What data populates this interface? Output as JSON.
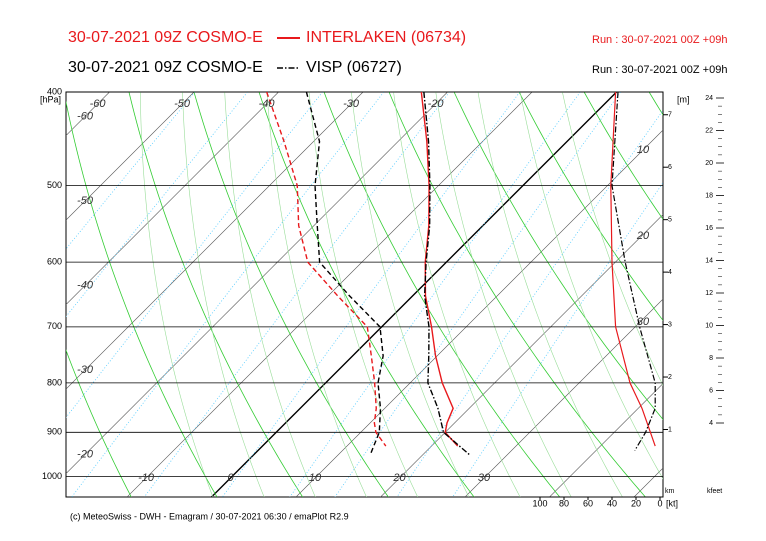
{
  "chart_data": {
    "type": "emagram",
    "footer": "(c) MeteoSwiss - DWH - Emagram / 30-07-2021 06:30 / emaPlot R2.9",
    "pressure_unit": "[hPa]",
    "height_unit": "[m]",
    "height_unit_bottom": "km",
    "kfeet_label": "kfeet",
    "speed_unit": "[kt]",
    "log_y": true,
    "ylim": [
      400,
      1050
    ],
    "yticks": [
      400,
      500,
      600,
      700,
      800,
      900,
      1000
    ],
    "temp_labels_top": [
      -60,
      -50,
      -40,
      -30,
      -20
    ],
    "temp_labels_left": [
      -60,
      -50,
      -40,
      -30,
      -20
    ],
    "temp_labels_bottom": [
      -10,
      0,
      10,
      20,
      30
    ],
    "height_ticks": [
      1,
      2,
      3,
      4,
      5,
      6,
      7
    ],
    "kfeet_lim": [
      4,
      24
    ],
    "kfeet_ticks": [
      4,
      6,
      8,
      10,
      12,
      14,
      16,
      18,
      20,
      22,
      24
    ],
    "speed_lim": [
      100,
      0
    ],
    "speed_ticks": [
      100,
      80,
      60,
      40,
      20,
      0
    ],
    "speed_annotations": [
      10,
      20,
      30
    ],
    "series": [
      {
        "model": "30-07-2021 09Z COSMO-E",
        "name": "INTERLAKEN (06734)",
        "run": "Run : 30-07-2021 00Z +09h",
        "color": "#e8191c",
        "temperature_style": "solid",
        "dewpoint_style": "dashed",
        "pressure": [
          400,
          450,
          500,
          550,
          600,
          650,
          700,
          750,
          800,
          850,
          880,
          900,
          930
        ],
        "temperature": [
          -23.1,
          -16.6,
          -11.1,
          -6.4,
          -2.5,
          1.5,
          5.9,
          9.8,
          13.8,
          18.1,
          19.1,
          20.0,
          23.1
        ],
        "dewpoint": [
          -41.4,
          -33.5,
          -26.7,
          -21.8,
          -16.4,
          -8.9,
          -1.7,
          2.2,
          5.8,
          9.0,
          10.5,
          11.8,
          14.6
        ],
        "wind_pressure": [
          400,
          500,
          600,
          700,
          800,
          850,
          900,
          930
        ],
        "wind_speed": [
          37,
          41,
          40,
          37,
          25,
          15,
          8,
          4
        ]
      },
      {
        "model": "30-07-2021 09Z COSMO-E",
        "name": "VISP (06727)",
        "run": "Run : 30-07-2021 00Z +09h",
        "color": "#000000",
        "temperature_style": "dashdot",
        "dewpoint_style": "dashed",
        "pressure": [
          400,
          450,
          500,
          550,
          600,
          650,
          700,
          750,
          800,
          850,
          900,
          950
        ],
        "temperature": [
          -22.8,
          -16.4,
          -11.0,
          -6.3,
          -2.4,
          1.4,
          5.6,
          9.0,
          12.1,
          16.3,
          19.8,
          25.6
        ],
        "dewpoint": [
          -36.7,
          -29.3,
          -24.6,
          -19.6,
          -15.0,
          -7.5,
          -0.2,
          3.6,
          6.2,
          9.5,
          12.2,
          13.8
        ],
        "wind_pressure": [
          400,
          500,
          600,
          700,
          800,
          850,
          900,
          940
        ],
        "wind_speed": [
          35,
          40,
          29,
          17,
          4,
          4,
          12,
          21
        ]
      }
    ]
  }
}
